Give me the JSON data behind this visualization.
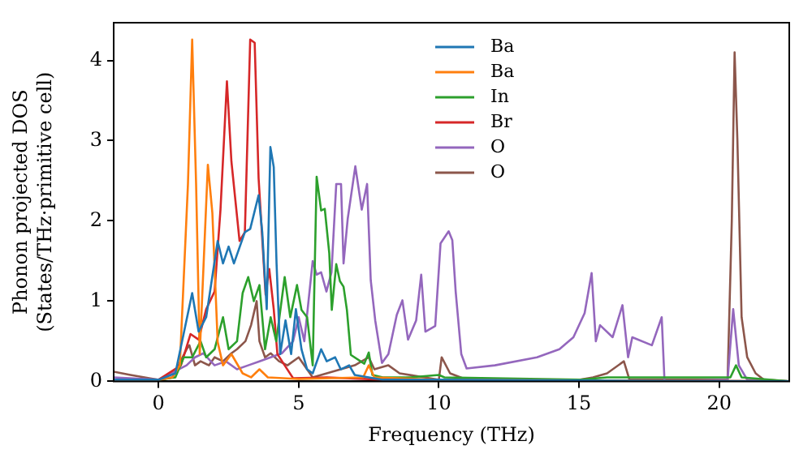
{
  "chart_data": {
    "type": "line",
    "xlabel": "Frequency (THz)",
    "ylabel": "Phonon projected DOS\n(States/THz·primitive cell)",
    "xlim": [
      -1.6,
      22.5
    ],
    "ylim": [
      0,
      4.47
    ],
    "xticks": [
      0,
      5,
      10,
      15,
      20
    ],
    "yticks": [
      0,
      1,
      2,
      3,
      4
    ],
    "grid": false,
    "legend": "top",
    "marker": "none",
    "line_style": "solid",
    "series": [
      {
        "name": "Ba",
        "color": "#1f77b4",
        "x": [
          -1.6,
          0,
          0.6,
          0.9,
          1.2,
          1.43,
          1.7,
          2.11,
          2.3,
          2.5,
          2.69,
          3.08,
          3.27,
          3.57,
          3.7,
          3.86,
          3.99,
          4.11,
          4.21,
          4.34,
          4.53,
          4.73,
          4.9,
          5.1,
          5.3,
          5.5,
          5.8,
          6.0,
          6.3,
          6.5,
          6.8,
          7.0,
          7.5,
          8.0,
          10,
          22.5
        ],
        "values": [
          0.02,
          0.02,
          0.1,
          0.6,
          1.1,
          0.62,
          0.8,
          1.75,
          1.47,
          1.68,
          1.47,
          1.86,
          1.9,
          2.32,
          1.86,
          0.9,
          2.92,
          2.67,
          1.47,
          0.34,
          0.76,
          0.34,
          0.9,
          0.4,
          0.15,
          0.1,
          0.4,
          0.25,
          0.3,
          0.15,
          0.2,
          0.08,
          0.05,
          0.02,
          0.02,
          0
        ]
      },
      {
        "name": "Ba",
        "color": "#ff7f0e",
        "x": [
          -1.6,
          0,
          0.5,
          0.76,
          1.05,
          1.2,
          1.34,
          1.47,
          1.76,
          1.92,
          2.11,
          2.3,
          2.6,
          3.0,
          3.3,
          3.6,
          3.9,
          5,
          7.3,
          7.5,
          7.7,
          10,
          22.5
        ],
        "values": [
          0.02,
          0.02,
          0.05,
          0.2,
          2.46,
          4.26,
          2.46,
          0.34,
          2.7,
          2.1,
          0.49,
          0.2,
          0.34,
          0.1,
          0.05,
          0.15,
          0.05,
          0.03,
          0.05,
          0.2,
          0.05,
          0.02,
          0
        ]
      },
      {
        "name": "In",
        "color": "#2ca02c",
        "x": [
          -1.6,
          0,
          0.6,
          0.9,
          1.2,
          1.5,
          1.7,
          2.0,
          2.3,
          2.5,
          2.8,
          3.0,
          3.2,
          3.4,
          3.6,
          3.8,
          4.0,
          4.2,
          4.5,
          4.7,
          4.94,
          5.1,
          5.3,
          5.5,
          5.64,
          5.8,
          5.93,
          6.09,
          6.18,
          6.34,
          6.47,
          6.6,
          6.72,
          6.86,
          7.34,
          7.5,
          7.63,
          8.0,
          9,
          10,
          10.2,
          15,
          16,
          20.4,
          20.6,
          20.8,
          22.5
        ],
        "values": [
          0.02,
          0.02,
          0.05,
          0.3,
          0.3,
          0.5,
          0.3,
          0.4,
          0.8,
          0.4,
          0.5,
          1.1,
          1.3,
          1.0,
          1.2,
          0.4,
          0.8,
          0.5,
          1.3,
          0.8,
          1.2,
          0.89,
          0.8,
          0.2,
          2.55,
          2.13,
          2.15,
          1.6,
          0.89,
          1.46,
          1.25,
          1.18,
          0.89,
          0.33,
          0.22,
          0.36,
          0.08,
          0.05,
          0.05,
          0.08,
          0.05,
          0.02,
          0.05,
          0.05,
          0.2,
          0.05,
          0
        ]
      },
      {
        "name": "Br",
        "color": "#d62728",
        "x": [
          -1.6,
          0,
          0.8,
          1.14,
          1.43,
          1.7,
          2.0,
          2.21,
          2.44,
          2.6,
          2.89,
          3.08,
          3.27,
          3.43,
          3.57,
          3.82,
          3.95,
          4.11,
          4.24,
          4.5,
          4.8,
          6,
          8,
          22.5
        ],
        "values": [
          0.02,
          0.02,
          0.2,
          0.59,
          0.52,
          0.9,
          1.12,
          2.14,
          3.74,
          2.74,
          1.75,
          1.86,
          4.26,
          4.22,
          2.53,
          1.08,
          1.4,
          0.9,
          0.34,
          0.2,
          0.04,
          0.05,
          0.02,
          0
        ]
      },
      {
        "name": "O",
        "color": "#9467bd",
        "x": [
          -1.6,
          0,
          1.0,
          1.3,
          1.6,
          2.0,
          2.4,
          2.8,
          3.2,
          3.6,
          4.0,
          4.4,
          4.8,
          5.0,
          5.2,
          5.5,
          5.64,
          5.8,
          5.99,
          6.17,
          6.34,
          6.51,
          6.6,
          6.75,
          7.02,
          7.25,
          7.44,
          7.57,
          7.73,
          7.97,
          8.2,
          8.5,
          8.7,
          8.9,
          9.19,
          9.37,
          9.52,
          9.87,
          10.06,
          10.35,
          10.48,
          10.6,
          10.8,
          10.99,
          12,
          13.5,
          14.3,
          14.8,
          15.2,
          15.45,
          15.6,
          15.75,
          16.2,
          16.55,
          16.75,
          16.9,
          17.6,
          17.95,
          18.05,
          20.3,
          20.5,
          20.7,
          21.0,
          22.5
        ],
        "values": [
          0.05,
          0.02,
          0.2,
          0.3,
          0.35,
          0.2,
          0.25,
          0.15,
          0.2,
          0.25,
          0.3,
          0.35,
          0.5,
          0.8,
          0.5,
          1.5,
          1.33,
          1.36,
          1.12,
          1.36,
          2.46,
          2.46,
          1.47,
          2.03,
          2.68,
          2.14,
          2.46,
          1.26,
          0.76,
          0.23,
          0.34,
          0.83,
          1.01,
          0.52,
          0.76,
          1.33,
          0.62,
          0.69,
          1.72,
          1.87,
          1.76,
          1.12,
          0.34,
          0.16,
          0.2,
          0.3,
          0.4,
          0.55,
          0.85,
          1.35,
          0.5,
          0.7,
          0.55,
          0.95,
          0.3,
          0.55,
          0.45,
          0.8,
          0,
          0.02,
          0.9,
          0.2,
          0.02,
          0
        ]
      },
      {
        "name": "O",
        "color": "#8c564b",
        "x": [
          -1.6,
          -1,
          0,
          0.5,
          1.0,
          1.1,
          1.3,
          1.5,
          1.8,
          2.0,
          2.3,
          2.6,
          2.8,
          3.1,
          3.3,
          3.5,
          3.6,
          3.8,
          4.0,
          4.3,
          4.6,
          5.0,
          5.5,
          6,
          7.0,
          7.5,
          7.7,
          8.2,
          8.6,
          9.5,
          10.0,
          10.1,
          10.4,
          11,
          15,
          15.5,
          16,
          16.6,
          16.8,
          20.3,
          20.45,
          20.55,
          20.65,
          20.8,
          21.0,
          21.3,
          21.6,
          22.5
        ],
        "values": [
          0.12,
          0.08,
          0.02,
          0.05,
          0.4,
          0.45,
          0.2,
          0.25,
          0.2,
          0.3,
          0.25,
          0.35,
          0.4,
          0.5,
          0.7,
          1.0,
          0.5,
          0.3,
          0.35,
          0.25,
          0.2,
          0.3,
          0.05,
          0.1,
          0.2,
          0.3,
          0.15,
          0.2,
          0.1,
          0.05,
          0.02,
          0.3,
          0.1,
          0.02,
          0.02,
          0.05,
          0.1,
          0.25,
          0.02,
          0.02,
          2.0,
          4.1,
          3.0,
          0.8,
          0.3,
          0.1,
          0.02,
          0
        ]
      }
    ]
  }
}
